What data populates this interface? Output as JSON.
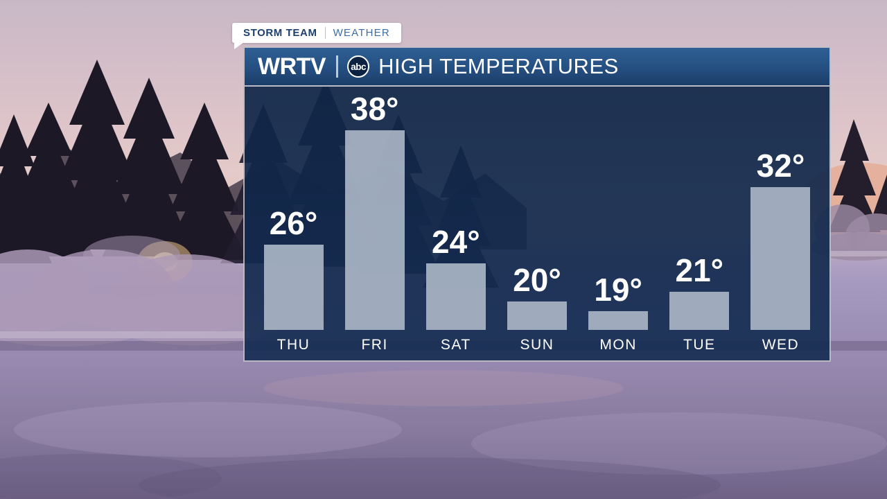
{
  "badge": {
    "brand": "STORM TEAM",
    "section": "WEATHER"
  },
  "header": {
    "station": "WRTV",
    "network_logo": "abc",
    "title": "HIGH TEMPERATURES"
  },
  "chart_data": {
    "type": "bar",
    "title": "HIGH TEMPERATURES",
    "categories": [
      "THU",
      "FRI",
      "SAT",
      "SUN",
      "MON",
      "TUE",
      "WED"
    ],
    "values": [
      26,
      38,
      24,
      20,
      19,
      21,
      32
    ],
    "unit": "°",
    "xlabel": "",
    "ylabel": "",
    "ylim": [
      17,
      40
    ],
    "grid": false,
    "legend": "none",
    "value_label_position": "above-bars",
    "bar_color": "#aab7c8",
    "plot_background": "#13294d"
  },
  "colors": {
    "header_gradient_top": "#2e5f93",
    "header_gradient_bottom": "#1b3d68",
    "badge_brand_text": "#1c3f6e",
    "badge_section_text": "#3a6da8",
    "value_text": "#ffffff"
  }
}
